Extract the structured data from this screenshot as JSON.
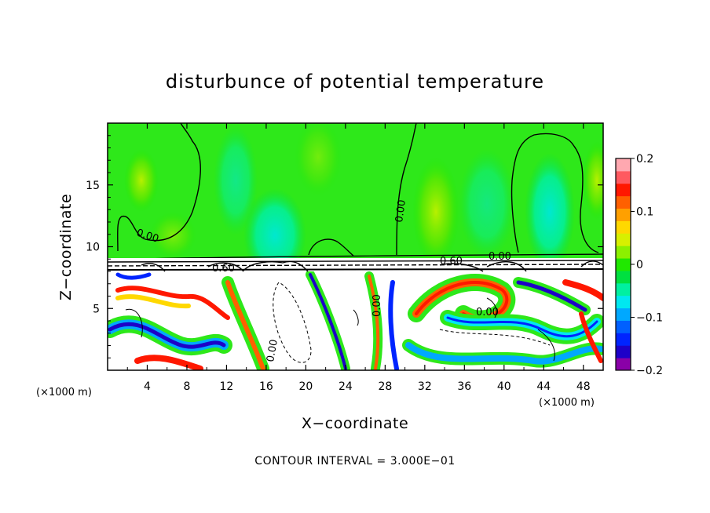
{
  "chart_data": {
    "type": "heatmap",
    "title": "disturbunce of potential temperature",
    "xlabel": "X−coordinate",
    "ylabel": "Z−coordinate",
    "x_unit_left": "(×1000 m)",
    "x_unit_right": "(×1000 m)",
    "xlim": [
      0,
      50
    ],
    "ylim": [
      0,
      20
    ],
    "x_ticks": [
      4,
      8,
      12,
      16,
      20,
      24,
      28,
      32,
      36,
      40,
      44,
      48
    ],
    "x_tick_labels": [
      "4",
      "8",
      "12",
      "16",
      "20",
      "24",
      "28",
      "32",
      "36",
      "40",
      "44",
      "48"
    ],
    "y_ticks": [
      5,
      10,
      15
    ],
    "y_tick_labels": [
      "5",
      "10",
      "15"
    ],
    "colorbar": {
      "min": -0.2,
      "max": 0.2,
      "ticks": [
        0.2,
        0.1,
        0,
        -0.1,
        -0.2
      ],
      "tick_labels": [
        "0.2",
        "0.1",
        "0",
        "−0.1",
        "−0.2"
      ],
      "colors": [
        "#8a00a8",
        "#1d00c8",
        "#0024ff",
        "#0060ff",
        "#00a8ff",
        "#00e8f0",
        "#00f0a0",
        "#00e040",
        "#20e800",
        "#8cf000",
        "#d8f000",
        "#ffd800",
        "#ffa000",
        "#ff6000",
        "#ff1800",
        "#ff5a60",
        "#ffa8b0"
      ]
    },
    "contour_labels": [
      "0.00",
      "0.00",
      "0.00",
      "0.60",
      "0.00",
      "0.00",
      "0.00",
      "0.60"
    ],
    "contour_interval_text": "CONTOUR INTERVAL = 3.000E−01",
    "regions": [
      {
        "name": "upper",
        "z_range": [
          9.2,
          20
        ],
        "dominant_value": 0.0
      },
      {
        "name": "lower",
        "z_range": [
          0,
          8.0
        ],
        "value_range": [
          -0.2,
          0.2
        ]
      }
    ]
  }
}
